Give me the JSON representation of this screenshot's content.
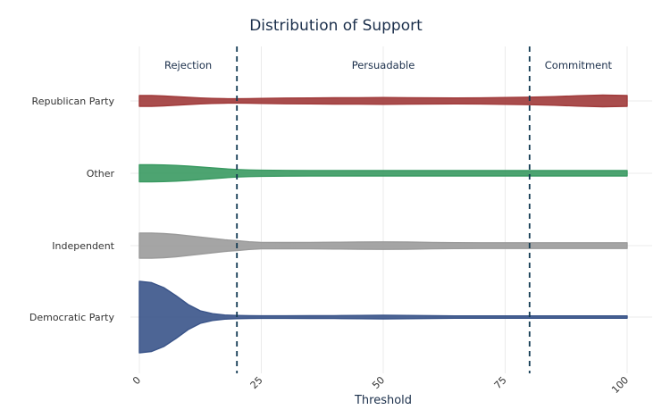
{
  "chart_data": {
    "type": "violin",
    "title": "Distribution of Support",
    "xlabel": "Threshold",
    "ylabel": "",
    "xlim": [
      0,
      100
    ],
    "x_ticks": [
      0,
      25,
      50,
      75,
      100
    ],
    "thresholds": [
      20,
      80
    ],
    "regions": [
      {
        "label": "Rejection",
        "center": 10
      },
      {
        "label": "Persuadable",
        "center": 50
      },
      {
        "label": "Commitment",
        "center": 90
      }
    ],
    "categories": [
      "Republican Party",
      "Other",
      "Independent",
      "Democratic Party"
    ],
    "x": [
      0,
      2.5,
      5,
      7.5,
      10,
      12.5,
      15,
      17.5,
      20,
      22.5,
      25,
      30,
      35,
      40,
      45,
      50,
      55,
      60,
      65,
      70,
      75,
      80,
      85,
      90,
      95,
      100
    ],
    "series": [
      {
        "name": "Republican Party",
        "color": "#a03a3a",
        "halfwidth": [
          6.0,
          6.0,
          5.5,
          4.8,
          4.0,
          3.3,
          2.8,
          2.5,
          2.4,
          2.5,
          2.8,
          3.2,
          3.3,
          3.5,
          3.6,
          3.8,
          3.6,
          3.4,
          3.3,
          3.4,
          3.8,
          4.2,
          4.8,
          5.8,
          6.5,
          6.0
        ]
      },
      {
        "name": "Other",
        "color": "#3a9a62",
        "halfwidth": [
          9.5,
          9.5,
          9.3,
          8.8,
          8.0,
          7.0,
          6.0,
          5.0,
          4.2,
          3.7,
          3.4,
          3.2,
          3.1,
          3.1,
          3.0,
          3.0,
          3.0,
          3.0,
          3.0,
          3.0,
          3.0,
          3.0,
          3.0,
          3.0,
          3.0,
          3.0
        ]
      },
      {
        "name": "Independent",
        "color": "#9b9b9b",
        "halfwidth": [
          14.0,
          14.0,
          13.5,
          12.5,
          11.0,
          9.5,
          8.0,
          6.5,
          5.5,
          4.3,
          3.6,
          3.5,
          3.6,
          3.8,
          4.0,
          4.2,
          4.0,
          3.6,
          3.3,
          3.2,
          3.2,
          3.2,
          3.2,
          3.2,
          3.2,
          3.2
        ]
      },
      {
        "name": "Democratic Party",
        "color": "#3a5489",
        "halfwidth": [
          40.0,
          38.5,
          33.0,
          24.0,
          14.0,
          7.0,
          3.8,
          2.3,
          1.8,
          1.5,
          1.4,
          1.4,
          1.5,
          1.6,
          1.8,
          2.0,
          1.8,
          1.5,
          1.3,
          1.3,
          1.3,
          1.3,
          1.3,
          1.3,
          1.3,
          1.3
        ]
      }
    ],
    "grid": true
  }
}
